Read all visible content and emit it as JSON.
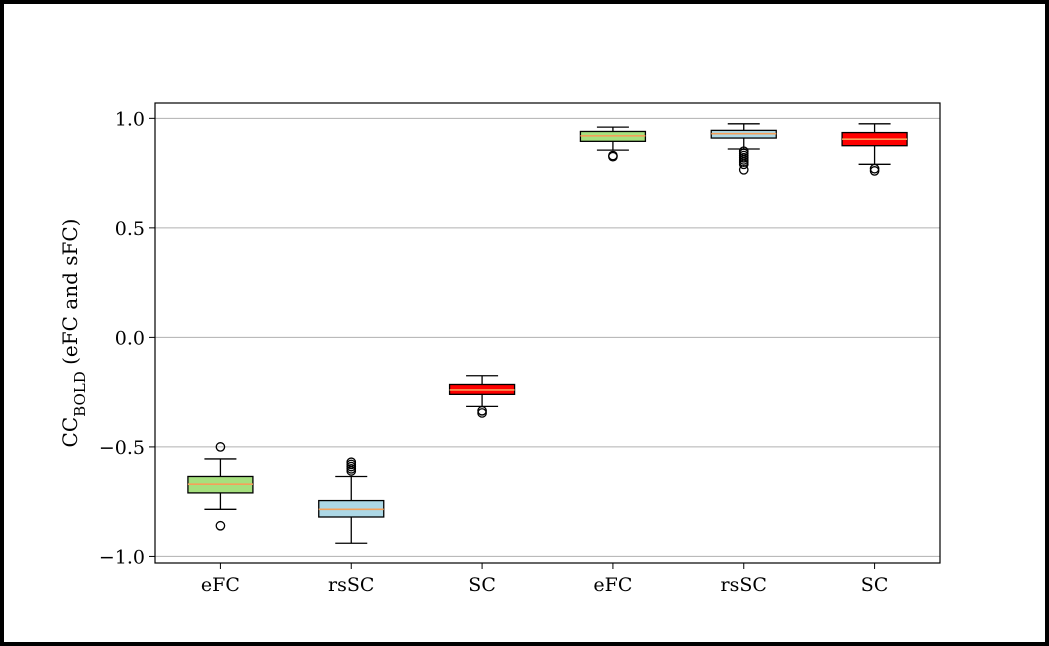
{
  "chart_data": {
    "type": "box",
    "title": "",
    "xlabel": "",
    "ylabel": {
      "main": "CC",
      "sub": "BOLD",
      "suffix": " (eFC and sFC)"
    },
    "categories": [
      "eFC",
      "rsSC",
      "SC",
      "eFC",
      "rsSC",
      "SC"
    ],
    "ylim": [
      -1.03,
      1.07
    ],
    "yticks": [
      -1.0,
      -0.5,
      0.0,
      0.5,
      1.0
    ],
    "ytick_labels": [
      "−1.0",
      "−0.5",
      "0.0",
      "0.5",
      "1.0"
    ],
    "grid": "horizontal",
    "boxes": [
      {
        "category": "eFC",
        "whisker_low": -0.785,
        "q1": -0.71,
        "median": -0.67,
        "q3": -0.635,
        "whisker_high": -0.555,
        "outliers": [
          -0.5,
          -0.86
        ],
        "color": "#a6e07e"
      },
      {
        "category": "rsSC",
        "whisker_low": -0.94,
        "q1": -0.82,
        "median": -0.785,
        "q3": -0.745,
        "whisker_high": -0.635,
        "outliers": [
          -0.57,
          -0.58,
          -0.59,
          -0.6,
          -0.61
        ],
        "color": "#add8e6"
      },
      {
        "category": "SC",
        "whisker_low": -0.315,
        "q1": -0.26,
        "median": -0.24,
        "q3": -0.215,
        "whisker_high": -0.175,
        "outliers": [
          -0.335,
          -0.345
        ],
        "color": "#ff0000"
      },
      {
        "category": "eFC",
        "whisker_low": 0.855,
        "q1": 0.895,
        "median": 0.92,
        "q3": 0.94,
        "whisker_high": 0.96,
        "outliers": [
          0.825,
          0.83
        ],
        "color": "#a6e07e"
      },
      {
        "category": "rsSC",
        "whisker_low": 0.86,
        "q1": 0.91,
        "median": 0.93,
        "q3": 0.945,
        "whisker_high": 0.975,
        "outliers": [
          0.765,
          0.79,
          0.8,
          0.81,
          0.82,
          0.83,
          0.84,
          0.85
        ],
        "color": "#add8e6"
      },
      {
        "category": "SC",
        "whisker_low": 0.79,
        "q1": 0.875,
        "median": 0.905,
        "q3": 0.935,
        "whisker_high": 0.975,
        "outliers": [
          0.76,
          0.77
        ],
        "color": "#ff0000"
      }
    ],
    "median_color": "#f5a05a"
  }
}
